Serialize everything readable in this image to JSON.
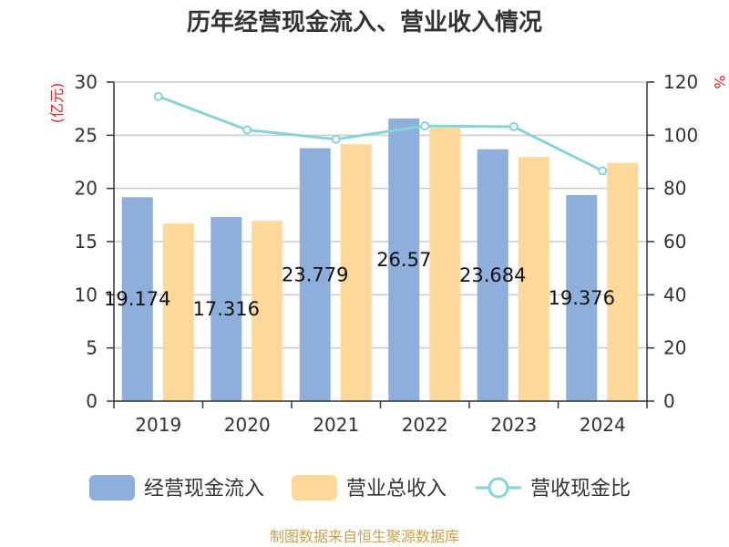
{
  "chart_data": {
    "type": "bar",
    "title": "历年经营现金流入、营业收入情况",
    "categories": [
      "2019",
      "2020",
      "2021",
      "2022",
      "2023",
      "2024"
    ],
    "y_left": {
      "unit_label": "(亿元)",
      "range": [
        0,
        30
      ],
      "ticks": [
        "0",
        "5",
        "10",
        "15",
        "20",
        "25",
        "30"
      ]
    },
    "y_right": {
      "unit_label": "%",
      "range": [
        0,
        120
      ],
      "ticks": [
        "0",
        "20",
        "40",
        "60",
        "80",
        "100",
        "120"
      ]
    },
    "series": [
      {
        "name": "经营现金流入",
        "type": "bar",
        "axis": "left",
        "color": "#8eaedb",
        "values": [
          19.174,
          17.316,
          23.779,
          26.57,
          23.684,
          19.376
        ],
        "labels": [
          "19.174",
          "17.316",
          "23.779",
          "26.57",
          "23.684",
          "19.376"
        ]
      },
      {
        "name": "营业总收入",
        "type": "bar",
        "axis": "left",
        "color": "#fdd898",
        "values": [
          16.7,
          16.95,
          24.15,
          25.7,
          22.95,
          22.4
        ]
      },
      {
        "name": "营收现金比",
        "type": "line",
        "axis": "right",
        "color": "#86d3d8",
        "values": [
          114.6,
          102.0,
          98.5,
          103.5,
          103.2,
          86.6
        ]
      }
    ],
    "grid": true,
    "legend_position": "bottom"
  },
  "source": "制图数据来自恒生聚源数据库"
}
